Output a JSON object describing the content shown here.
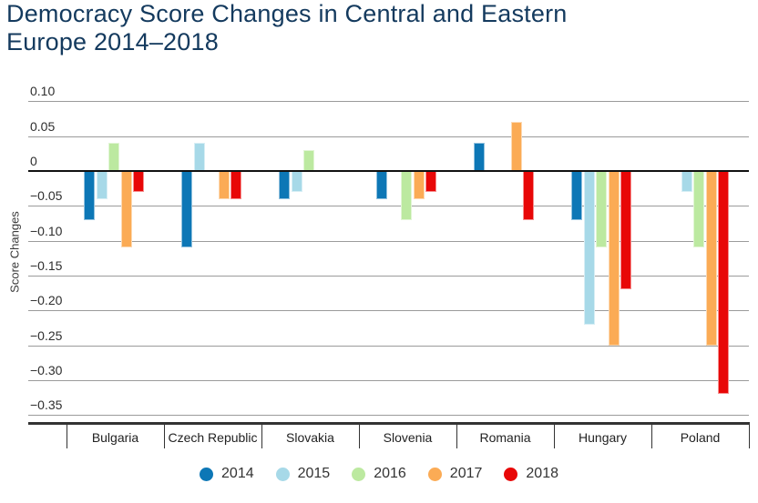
{
  "header": {
    "title_line1": "Democracy Score Changes in Central and Eastern",
    "title_line2": "Europe 2014–2018"
  },
  "chart_data": {
    "type": "bar",
    "title": "Democracy Score Changes in Central and Eastern Europe 2014–2018",
    "ylabel": "Score Changes",
    "xlabel": "",
    "ylim": [
      -0.35,
      0.1
    ],
    "grid": true,
    "legend_position": "bottom",
    "categories": [
      "Bulgaria",
      "Czech Republic",
      "Slovakia",
      "Slovenia",
      "Romania",
      "Hungary",
      "Poland"
    ],
    "series": [
      {
        "name": "2014",
        "color": "#0d77b6",
        "values": [
          -0.07,
          -0.11,
          -0.04,
          -0.04,
          0.04,
          -0.07,
          0
        ]
      },
      {
        "name": "2015",
        "color": "#a7d9e8",
        "values": [
          -0.04,
          0.04,
          -0.03,
          0,
          0,
          -0.22,
          -0.03
        ]
      },
      {
        "name": "2016",
        "color": "#bce9a0",
        "values": [
          0.04,
          0,
          0.03,
          -0.07,
          0,
          -0.11,
          -0.11
        ]
      },
      {
        "name": "2017",
        "color": "#fbab55",
        "values": [
          -0.11,
          -0.04,
          0,
          -0.04,
          0.07,
          -0.25,
          -0.25
        ]
      },
      {
        "name": "2018",
        "color": "#e80707",
        "values": [
          -0.03,
          -0.04,
          0,
          -0.03,
          -0.07,
          -0.17,
          -0.32
        ]
      }
    ],
    "yticks": [
      {
        "value": 0.1,
        "label": "0.10"
      },
      {
        "value": 0.05,
        "label": "0.05"
      },
      {
        "value": 0,
        "label": "0"
      },
      {
        "value": -0.05,
        "label": "−0.05"
      },
      {
        "value": -0.1,
        "label": "−0.10"
      },
      {
        "value": -0.15,
        "label": "−0.15"
      },
      {
        "value": -0.2,
        "label": "−0.20"
      },
      {
        "value": -0.25,
        "label": "−0.25"
      },
      {
        "value": -0.3,
        "label": "−0.30"
      },
      {
        "value": -0.35,
        "label": "−0.35"
      }
    ]
  }
}
